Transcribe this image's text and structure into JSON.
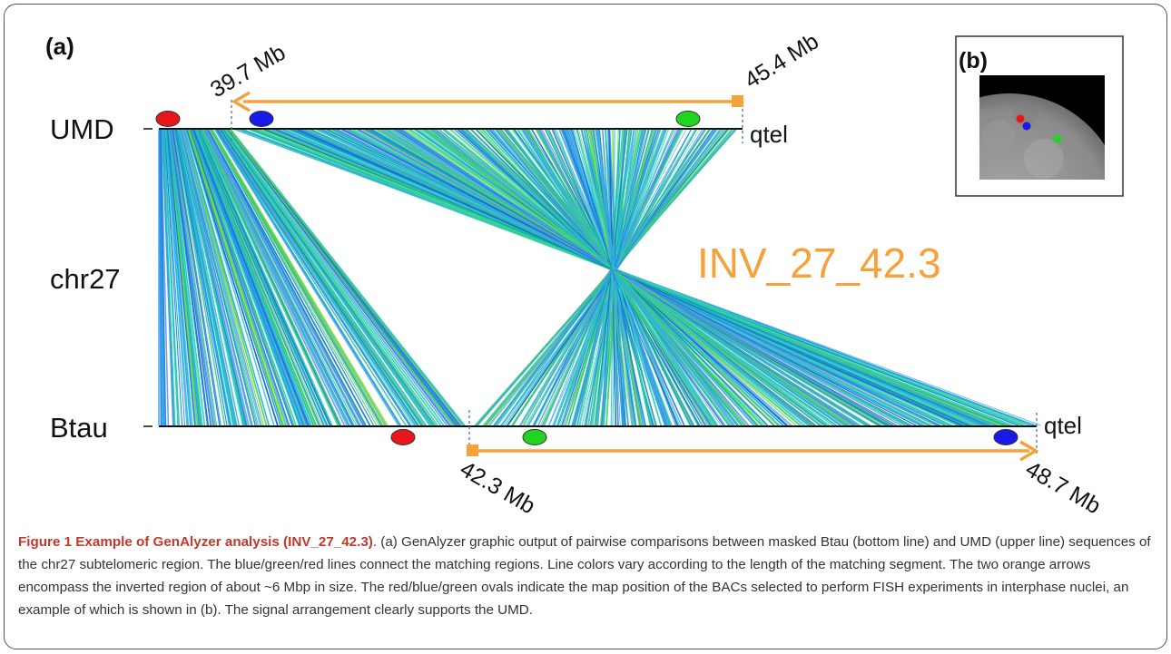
{
  "panel_a": {
    "label": "(a)",
    "inversion_label": "INV_27_42.3",
    "chromosome_label": "chr27",
    "tracks": {
      "upper": {
        "name": "UMD",
        "end_label": "qtel"
      },
      "lower": {
        "name": "Btau",
        "end_label": "qtel"
      }
    },
    "arrows": {
      "upper": {
        "start_label": "39.7 Mb",
        "end_label": "45.4 Mb"
      },
      "lower": {
        "start_label": "42.3 Mb",
        "end_label": "48.7 Mb"
      }
    },
    "marker_colors": {
      "red": "#e8161a",
      "blue": "#1a1ae8",
      "green": "#22d422"
    },
    "line_colors": [
      "#1e90e6",
      "#3fa8ee",
      "#22bbe0",
      "#0a7ad4",
      "#40e0c0",
      "#19c9a6",
      "#5f8ff0",
      "#2fd07a",
      "#6fdc2e",
      "#1566c8"
    ],
    "arrow_color": "#f5a13c"
  },
  "panel_b": {
    "label": "(b)"
  },
  "caption": {
    "title": "Figure 1 Example of GenAlyzer analysis (INV_27_42.3)",
    "text": ". (a) GenAlyzer graphic output of pairwise comparisons between masked Btau (bottom line) and UMD (upper line) sequences of the chr27 subtelomeric region. The blue/green/red lines connect the matching regions. Line colors vary according to the length of the matching segment. The two orange arrows encompass the inverted region of about ~6 Mbp in size. The red/blue/green ovals indicate the map position of the BACs selected to perform FISH experiments in interphase nuclei, an example of which is shown in (b). The signal arrangement clearly supports the UMD."
  }
}
